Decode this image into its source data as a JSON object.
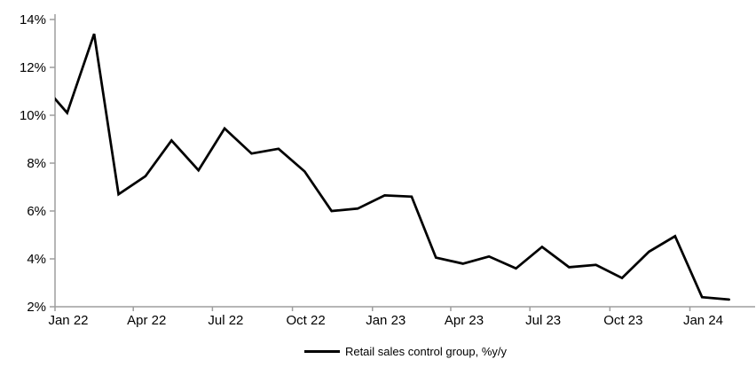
{
  "chart_data": {
    "type": "line",
    "title": "",
    "grid": false,
    "legend": {
      "position": "bottom"
    },
    "colors": {
      "line": "#000000",
      "axis": "#9d9d9d",
      "text": "#000000",
      "background": "#ffffff"
    },
    "y_axis": {
      "min": 2,
      "max": 14,
      "step": 2,
      "suffix": "%",
      "tick_labels": [
        "2%",
        "4%",
        "6%",
        "8%",
        "10%",
        "12%",
        "14%"
      ]
    },
    "x_axis": {
      "ticks": [
        {
          "date": "2022-01-01",
          "label": "Jan 22"
        },
        {
          "date": "2022-04-01",
          "label": "Apr 22"
        },
        {
          "date": "2022-07-01",
          "label": "Jul 22"
        },
        {
          "date": "2022-10-01",
          "label": "Oct 22"
        },
        {
          "date": "2023-01-01",
          "label": "Jan 23"
        },
        {
          "date": "2023-04-01",
          "label": "Apr 23"
        },
        {
          "date": "2023-07-01",
          "label": "Jul 23"
        },
        {
          "date": "2023-10-01",
          "label": "Oct 23"
        },
        {
          "date": "2024-01-01",
          "label": "Jan 24"
        }
      ]
    },
    "series": [
      {
        "name": "Retail sales control group, %y/y",
        "color": "#000000",
        "clipped_at_left_edge": true,
        "points": [
          {
            "label": "Dec 21",
            "date": "2021-12-15",
            "value": 11.4
          },
          {
            "label": "Jan 22",
            "date": "2022-01-15",
            "value": 10.1
          },
          {
            "label": "Feb 22",
            "date": "2022-02-15",
            "value": 13.4
          },
          {
            "label": "Mar 22",
            "date": "2022-03-15",
            "value": 6.7
          },
          {
            "label": "Apr 22",
            "date": "2022-04-15",
            "value": 7.45
          },
          {
            "label": "May 22",
            "date": "2022-05-15",
            "value": 8.95
          },
          {
            "label": "Jun 22",
            "date": "2022-06-15",
            "value": 7.7
          },
          {
            "label": "Jul 22",
            "date": "2022-07-15",
            "value": 9.45
          },
          {
            "label": "Aug 22",
            "date": "2022-08-15",
            "value": 8.4
          },
          {
            "label": "Sep 22",
            "date": "2022-09-15",
            "value": 8.6
          },
          {
            "label": "Oct 22",
            "date": "2022-10-15",
            "value": 7.65
          },
          {
            "label": "Nov 22",
            "date": "2022-11-15",
            "value": 6.0
          },
          {
            "label": "Dec 22",
            "date": "2022-12-15",
            "value": 6.1
          },
          {
            "label": "Jan 23",
            "date": "2023-01-15",
            "value": 6.65
          },
          {
            "label": "Feb 23",
            "date": "2023-02-15",
            "value": 6.6
          },
          {
            "label": "Mar 23",
            "date": "2023-03-15",
            "value": 4.05
          },
          {
            "label": "Apr 23",
            "date": "2023-04-15",
            "value": 3.8
          },
          {
            "label": "May 23",
            "date": "2023-05-15",
            "value": 4.1
          },
          {
            "label": "Jun 23",
            "date": "2023-06-15",
            "value": 3.6
          },
          {
            "label": "Jul 23",
            "date": "2023-07-15",
            "value": 4.5
          },
          {
            "label": "Aug 23",
            "date": "2023-08-15",
            "value": 3.65
          },
          {
            "label": "Sep 23",
            "date": "2023-09-15",
            "value": 3.75
          },
          {
            "label": "Oct 23",
            "date": "2023-10-15",
            "value": 3.2
          },
          {
            "label": "Nov 23",
            "date": "2023-11-15",
            "value": 4.3
          },
          {
            "label": "Dec 23",
            "date": "2023-12-15",
            "value": 4.95
          },
          {
            "label": "Jan 24",
            "date": "2024-01-15",
            "value": 2.4
          },
          {
            "label": "Feb 24",
            "date": "2024-02-15",
            "value": 2.3
          }
        ]
      }
    ]
  }
}
